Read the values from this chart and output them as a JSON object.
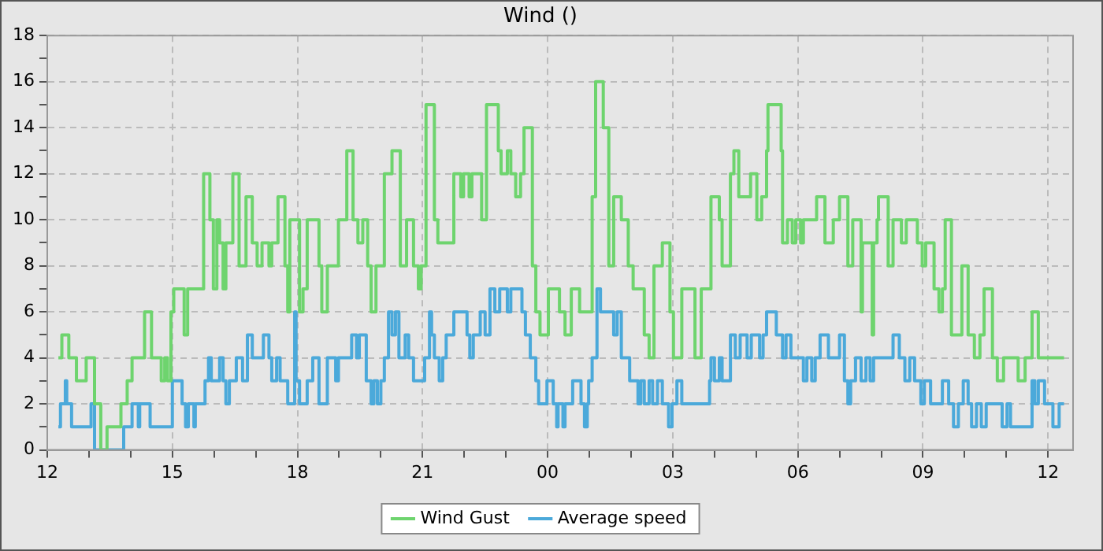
{
  "chart_data": {
    "type": "step",
    "title": "Wind ()",
    "xlim": [
      "--01-01T12:00",
      "--01-02T12:36"
    ],
    "xticks": [
      {
        "value": "--01-01T12:00",
        "label": "12"
      },
      {
        "value": "--01-01T13:00",
        "label": null
      },
      {
        "value": "--01-01T14:00",
        "label": null
      },
      {
        "value": "--01-01T15:00",
        "label": "15"
      },
      {
        "value": "--01-01T16:00",
        "label": null
      },
      {
        "value": "--01-01T17:00",
        "label": null
      },
      {
        "value": "--01-01T18:00",
        "label": "18"
      },
      {
        "value": "--01-01T19:00",
        "label": null
      },
      {
        "value": "--01-01T20:00",
        "label": null
      },
      {
        "value": "--01-01T21:00",
        "label": "21"
      },
      {
        "value": "--01-01T22:00",
        "label": null
      },
      {
        "value": "--01-01T23:00",
        "label": null
      },
      {
        "value": "--01-02T00:00",
        "label": "00"
      },
      {
        "value": "--01-02T01:00",
        "label": null
      },
      {
        "value": "--01-02T02:00",
        "label": null
      },
      {
        "value": "--01-02T03:00",
        "label": "03"
      },
      {
        "value": "--01-02T04:00",
        "label": null
      },
      {
        "value": "--01-02T05:00",
        "label": null
      },
      {
        "value": "--01-02T06:00",
        "label": "06"
      },
      {
        "value": "--01-02T07:00",
        "label": null
      },
      {
        "value": "--01-02T08:00",
        "label": null
      },
      {
        "value": "--01-02T09:00",
        "label": "09"
      },
      {
        "value": "--01-02T10:00",
        "label": null
      },
      {
        "value": "--01-02T11:00",
        "label": null
      },
      {
        "value": "--01-02T12:00",
        "label": "12"
      }
    ],
    "ylim": [
      0,
      18
    ],
    "yticks": [
      0,
      {
        "value": 1,
        "label": null
      },
      2,
      {
        "value": 3,
        "label": null
      },
      4,
      {
        "value": 5,
        "label": null
      },
      6,
      {
        "value": 7,
        "label": null
      },
      8,
      {
        "value": 9,
        "label": null
      },
      10,
      {
        "value": 11,
        "label": null
      },
      12,
      {
        "value": 13,
        "label": null
      },
      14,
      {
        "value": 15,
        "label": null
      },
      16,
      {
        "value": 17,
        "label": null
      },
      18
    ],
    "grid": true,
    "legend": "bottom",
    "marker": "none",
    "line_style": "solid",
    "series": [
      {
        "name": "Wind Gust",
        "color": "#6ed46e",
        "x": [
          "--01-01T12:16",
          "--01-01T12:21",
          "--01-01T12:31",
          "--01-01T12:42",
          "--01-01T12:56",
          "--01-01T13:08",
          "--01-01T13:17",
          "--01-01T13:26",
          "--01-01T13:46",
          "--01-01T13:55",
          "--01-01T14:02",
          "--01-01T14:20",
          "--01-01T14:30",
          "--01-01T14:44",
          "--01-01T14:49",
          "--01-01T14:53",
          "--01-01T14:58",
          "--01-01T15:02",
          "--01-01T15:17",
          "--01-01T15:22",
          "--01-01T15:45",
          "--01-01T15:54",
          "--01-01T15:59",
          "--01-01T16:04",
          "--01-01T16:08",
          "--01-01T16:13",
          "--01-01T16:17",
          "--01-01T16:27",
          "--01-01T16:36",
          "--01-01T16:46",
          "--01-01T16:55",
          "--01-01T17:02",
          "--01-01T17:09",
          "--01-01T17:19",
          "--01-01T17:23",
          "--01-01T17:32",
          "--01-01T17:42",
          "--01-01T17:46",
          "--01-01T17:49",
          "--01-01T18:03",
          "--01-01T18:08",
          "--01-01T18:14",
          "--01-01T18:31",
          "--01-01T18:35",
          "--01-01T18:43",
          "--01-01T18:59",
          "--01-01T19:11",
          "--01-01T19:20",
          "--01-01T19:27",
          "--01-01T19:34",
          "--01-01T19:41",
          "--01-01T19:46",
          "--01-01T19:53",
          "--01-01T20:05",
          "--01-01T20:16",
          "--01-01T20:28",
          "--01-01T20:37",
          "--01-01T20:47",
          "--01-01T20:54",
          "--01-01T20:58",
          "--01-01T21:05",
          "--01-01T21:17",
          "--01-01T21:22",
          "--01-01T21:45",
          "--01-01T21:55",
          "--01-01T21:59",
          "--01-01T22:07",
          "--01-01T22:11",
          "--01-01T22:25",
          "--01-01T22:32",
          "--01-01T22:49",
          "--01-01T22:53",
          "--01-01T23:02",
          "--01-01T23:07",
          "--01-01T23:14",
          "--01-01T23:21",
          "--01-01T23:26",
          "--01-01T23:38",
          "--01-01T23:43",
          "--01-01T23:49",
          "--01-02T00:01",
          "--01-02T00:17",
          "--01-02T00:25",
          "--01-02T00:34",
          "--01-02T00:46",
          "--01-02T01:04",
          "--01-02T01:09",
          "--01-02T01:20",
          "--01-02T01:28",
          "--01-02T01:35",
          "--01-02T01:46",
          "--01-02T01:56",
          "--01-02T02:03",
          "--01-02T02:19",
          "--01-02T02:26",
          "--01-02T02:33",
          "--01-02T02:45",
          "--01-02T02:56",
          "--01-02T03:01",
          "--01-02T03:13",
          "--01-02T03:32",
          "--01-02T03:41",
          "--01-02T03:55",
          "--01-02T04:07",
          "--01-02T04:11",
          "--01-02T04:23",
          "--01-02T04:28",
          "--01-02T04:35",
          "--01-02T04:52",
          "--01-02T05:01",
          "--01-02T05:08",
          "--01-02T05:15",
          "--01-02T05:17",
          "--01-02T05:36",
          "--01-02T05:38",
          "--01-02T05:45",
          "--01-02T05:52",
          "--01-02T05:57",
          "--01-02T06:04",
          "--01-02T06:08",
          "--01-02T06:27",
          "--01-02T06:39",
          "--01-02T06:51",
          "--01-02T07:00",
          "--01-02T07:12",
          "--01-02T07:19",
          "--01-02T07:31",
          "--01-02T07:33",
          "--01-02T07:47",
          "--01-02T07:49",
          "--01-02T07:54",
          "--01-02T07:56",
          "--01-02T08:10",
          "--01-02T08:17",
          "--01-02T08:29",
          "--01-02T08:36",
          "--01-02T08:52",
          "--01-02T08:59",
          "--01-02T09:04",
          "--01-02T09:16",
          "--01-02T09:23",
          "--01-02T09:28",
          "--01-02T09:32",
          "--01-02T09:41",
          "--01-02T09:56",
          "--01-02T10:05",
          "--01-02T10:14",
          "--01-02T10:22",
          "--01-02T10:28",
          "--01-02T10:40",
          "--01-02T10:47",
          "--01-02T10:56",
          "--01-02T11:17",
          "--01-02T11:27",
          "--01-02T11:37",
          "--01-02T11:46",
          "--01-02T12:23"
        ],
        "values": [
          4,
          5,
          4,
          3,
          4,
          2,
          0,
          1,
          2,
          3,
          4,
          6,
          4,
          3,
          4,
          3,
          6,
          7,
          5,
          7,
          12,
          10,
          7,
          10,
          9,
          7,
          9,
          12,
          8,
          11,
          9,
          8,
          9,
          8,
          9,
          11,
          8,
          6,
          10,
          6,
          7,
          10,
          8,
          6,
          8,
          10,
          13,
          10,
          9,
          10,
          8,
          6,
          8,
          12,
          13,
          8,
          10,
          8,
          7,
          8,
          15,
          10,
          9,
          12,
          11,
          12,
          11,
          12,
          10,
          15,
          13,
          12,
          13,
          12,
          11,
          12,
          14,
          8,
          6,
          5,
          7,
          6,
          5,
          7,
          6,
          11,
          16,
          14,
          8,
          11,
          10,
          8,
          7,
          5,
          4,
          8,
          9,
          6,
          4,
          7,
          4,
          7,
          11,
          10,
          8,
          12,
          13,
          11,
          12,
          10,
          11,
          13,
          15,
          13,
          9,
          10,
          9,
          10,
          9,
          10,
          11,
          9,
          10,
          11,
          8,
          10,
          6,
          9,
          5,
          9,
          10,
          11,
          8,
          10,
          9,
          10,
          9,
          8,
          9,
          7,
          6,
          7,
          10,
          5,
          8,
          5,
          4,
          5,
          7,
          4,
          3,
          4,
          3,
          4,
          6,
          4,
          4
        ]
      },
      {
        "name": "Average speed",
        "color": "#4ba9da",
        "x": [
          "--01-01T12:16",
          "--01-01T12:19",
          "--01-01T12:26",
          "--01-01T12:28",
          "--01-01T12:35",
          "--01-01T13:03",
          "--01-01T13:08",
          "--01-01T13:50",
          "--01-01T14:02",
          "--01-01T14:11",
          "--01-01T14:13",
          "--01-01T14:28",
          "--01-01T15:00",
          "--01-01T15:14",
          "--01-01T15:19",
          "--01-01T15:23",
          "--01-01T15:31",
          "--01-01T15:33",
          "--01-01T15:47",
          "--01-01T15:52",
          "--01-01T15:56",
          "--01-01T16:08",
          "--01-01T16:13",
          "--01-01T16:17",
          "--01-01T16:22",
          "--01-01T16:32",
          "--01-01T16:41",
          "--01-01T16:48",
          "--01-01T16:55",
          "--01-01T17:11",
          "--01-01T17:19",
          "--01-01T17:23",
          "--01-01T17:30",
          "--01-01T17:35",
          "--01-01T17:46",
          "--01-01T17:56",
          "--01-01T17:58",
          "--01-01T18:03",
          "--01-01T18:14",
          "--01-01T18:22",
          "--01-01T18:31",
          "--01-01T18:43",
          "--01-01T18:55",
          "--01-01T18:59",
          "--01-01T19:18",
          "--01-01T19:25",
          "--01-01T19:29",
          "--01-01T19:39",
          "--01-01T19:46",
          "--01-01T19:50",
          "--01-01T19:55",
          "--01-01T20:00",
          "--01-01T20:05",
          "--01-01T20:11",
          "--01-01T20:16",
          "--01-01T20:21",
          "--01-01T20:26",
          "--01-01T20:35",
          "--01-01T20:40",
          "--01-01T20:47",
          "--01-01T21:03",
          "--01-01T21:10",
          "--01-01T21:13",
          "--01-01T21:17",
          "--01-01T21:24",
          "--01-01T21:29",
          "--01-01T21:34",
          "--01-01T21:45",
          "--01-01T22:04",
          "--01-01T22:08",
          "--01-01T22:13",
          "--01-01T22:23",
          "--01-01T22:30",
          "--01-01T22:37",
          "--01-01T22:44",
          "--01-01T22:51",
          "--01-01T23:02",
          "--01-01T23:07",
          "--01-01T23:23",
          "--01-01T23:28",
          "--01-01T23:35",
          "--01-01T23:43",
          "--01-01T23:47",
          "--01-01T23:59",
          "--01-02T00:08",
          "--01-02T00:13",
          "--01-02T00:15",
          "--01-02T00:22",
          "--01-02T00:25",
          "--01-02T00:36",
          "--01-02T00:48",
          "--01-02T00:53",
          "--01-02T00:57",
          "--01-02T00:59",
          "--01-02T01:04",
          "--01-02T01:11",
          "--01-02T01:16",
          "--01-02T01:35",
          "--01-02T01:40",
          "--01-02T01:46",
          "--01-02T01:58",
          "--01-02T02:10",
          "--01-02T02:14",
          "--01-02T02:19",
          "--01-02T02:26",
          "--01-02T02:31",
          "--01-02T02:38",
          "--01-02T02:45",
          "--01-02T02:54",
          "--01-02T02:59",
          "--01-02T03:06",
          "--01-02T03:13",
          "--01-02T03:53",
          "--01-02T03:55",
          "--01-02T04:00",
          "--01-02T04:07",
          "--01-02T04:11",
          "--01-02T04:23",
          "--01-02T04:30",
          "--01-02T04:37",
          "--01-02T04:47",
          "--01-02T04:53",
          "--01-02T05:05",
          "--01-02T05:10",
          "--01-02T05:15",
          "--01-02T05:29",
          "--01-02T05:38",
          "--01-02T05:43",
          "--01-02T05:50",
          "--01-02T06:08",
          "--01-02T06:13",
          "--01-02T06:20",
          "--01-02T06:25",
          "--01-02T06:32",
          "--01-02T06:44",
          "--01-02T07:00",
          "--01-02T07:07",
          "--01-02T07:12",
          "--01-02T07:16",
          "--01-02T07:23",
          "--01-02T07:31",
          "--01-02T07:38",
          "--01-02T07:44",
          "--01-02T07:49",
          "--01-02T08:17",
          "--01-02T08:26",
          "--01-02T08:34",
          "--01-02T08:41",
          "--01-02T08:48",
          "--01-02T08:57",
          "--01-02T09:02",
          "--01-02T09:11",
          "--01-02T09:28",
          "--01-02T09:37",
          "--01-02T09:44",
          "--01-02T09:51",
          "--01-02T09:58",
          "--01-02T10:05",
          "--01-02T10:10",
          "--01-02T10:17",
          "--01-02T10:24",
          "--01-02T10:31",
          "--01-02T10:54",
          "--01-02T11:01",
          "--01-02T11:06",
          "--01-02T11:37",
          "--01-02T11:41",
          "--01-02T11:46",
          "--01-02T11:55",
          "--01-02T12:07",
          "--01-02T12:16",
          "--01-02T12:23"
        ],
        "values": [
          1,
          2,
          3,
          2,
          1,
          2,
          0,
          1,
          2,
          1,
          2,
          1,
          3,
          2,
          1,
          2,
          1,
          2,
          3,
          4,
          3,
          4,
          3,
          2,
          3,
          4,
          3,
          5,
          4,
          5,
          4,
          3,
          4,
          3,
          2,
          6,
          3,
          2,
          3,
          4,
          2,
          4,
          3,
          4,
          5,
          4,
          5,
          3,
          2,
          3,
          2,
          3,
          4,
          6,
          5,
          6,
          4,
          5,
          4,
          3,
          4,
          6,
          5,
          4,
          3,
          4,
          5,
          6,
          5,
          4,
          5,
          6,
          5,
          7,
          6,
          7,
          6,
          7,
          6,
          5,
          4,
          3,
          2,
          3,
          2,
          1,
          2,
          1,
          2,
          3,
          2,
          1,
          2,
          3,
          4,
          7,
          6,
          5,
          6,
          4,
          3,
          2,
          3,
          2,
          3,
          2,
          3,
          2,
          1,
          2,
          3,
          2,
          3,
          4,
          3,
          4,
          3,
          5,
          4,
          5,
          4,
          5,
          4,
          5,
          6,
          5,
          4,
          5,
          4,
          3,
          4,
          3,
          4,
          5,
          4,
          5,
          3,
          2,
          3,
          4,
          3,
          4,
          3,
          4,
          5,
          4,
          3,
          4,
          3,
          2,
          3,
          2,
          3,
          2,
          1,
          2,
          3,
          2,
          1,
          2,
          1,
          2,
          1,
          2,
          1,
          3,
          2,
          3,
          2,
          1,
          2,
          2
        ]
      }
    ]
  }
}
